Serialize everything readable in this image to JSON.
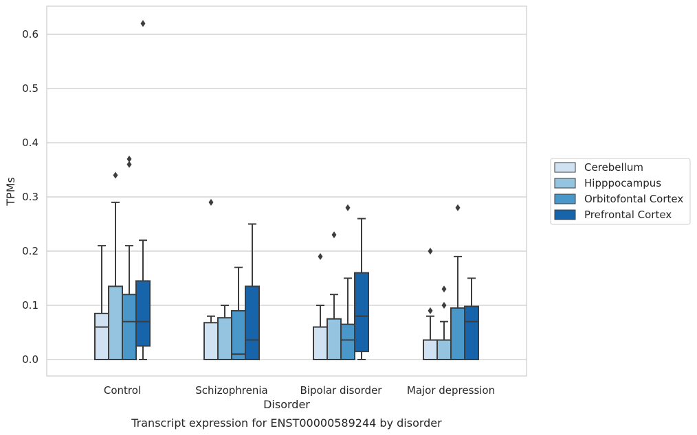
{
  "chart_data": {
    "type": "box",
    "caption": "Transcript expression for ENST00000589244 by disorder",
    "xlabel": "Disorder",
    "ylabel": "TPMs",
    "ylim": [
      -0.03,
      0.65
    ],
    "yticks": [
      0.0,
      0.1,
      0.2,
      0.3,
      0.4,
      0.5,
      0.6
    ],
    "ytick_labels": [
      "0.0",
      "0.1",
      "0.2",
      "0.3",
      "0.4",
      "0.5",
      "0.6"
    ],
    "grid": "horizontal",
    "legend_position": "right",
    "categories": [
      "Control",
      "Schizophrenia",
      "Bipolar disorder",
      "Major depression"
    ],
    "series": [
      {
        "name": "Cerebellum",
        "color": "#d0e1f2",
        "boxes": [
          {
            "whislo": 0.0,
            "q1": 0.0,
            "med": 0.06,
            "q3": 0.085,
            "whishi": 0.21,
            "fliers": []
          },
          {
            "whislo": 0.0,
            "q1": 0.0,
            "med": 0.0,
            "q3": 0.068,
            "whishi": 0.08,
            "fliers": [
              0.29
            ]
          },
          {
            "whislo": 0.0,
            "q1": 0.0,
            "med": 0.0,
            "q3": 0.06,
            "whishi": 0.1,
            "fliers": [
              0.19
            ]
          },
          {
            "whislo": 0.0,
            "q1": 0.0,
            "med": 0.0,
            "q3": 0.036,
            "whishi": 0.08,
            "fliers": [
              0.09,
              0.2
            ]
          }
        ]
      },
      {
        "name": "Hipppocampus",
        "color": "#94c4df",
        "boxes": [
          {
            "whislo": 0.0,
            "q1": 0.0,
            "med": 0.0,
            "q3": 0.135,
            "whishi": 0.29,
            "fliers": [
              0.34
            ]
          },
          {
            "whislo": 0.0,
            "q1": 0.0,
            "med": 0.0,
            "q3": 0.077,
            "whishi": 0.1,
            "fliers": []
          },
          {
            "whislo": 0.0,
            "q1": 0.0,
            "med": 0.0,
            "q3": 0.075,
            "whishi": 0.12,
            "fliers": [
              0.23
            ]
          },
          {
            "whislo": 0.0,
            "q1": 0.0,
            "med": 0.0,
            "q3": 0.036,
            "whishi": 0.07,
            "fliers": [
              0.1,
              0.13
            ]
          }
        ]
      },
      {
        "name": "Orbitofontal Cortex",
        "color": "#4a98c9",
        "boxes": [
          {
            "whislo": 0.0,
            "q1": 0.0,
            "med": 0.07,
            "q3": 0.12,
            "whishi": 0.21,
            "fliers": [
              0.36,
              0.37
            ]
          },
          {
            "whislo": 0.0,
            "q1": 0.0,
            "med": 0.01,
            "q3": 0.09,
            "whishi": 0.17,
            "fliers": []
          },
          {
            "whislo": 0.0,
            "q1": 0.0,
            "med": 0.036,
            "q3": 0.065,
            "whishi": 0.15,
            "fliers": [
              0.28
            ]
          },
          {
            "whislo": 0.0,
            "q1": 0.0,
            "med": 0.0,
            "q3": 0.095,
            "whishi": 0.19,
            "fliers": [
              0.28
            ]
          }
        ]
      },
      {
        "name": "Prefrontal Cortex",
        "color": "#1764ab",
        "boxes": [
          {
            "whislo": 0.0,
            "q1": 0.025,
            "med": 0.07,
            "q3": 0.145,
            "whishi": 0.22,
            "fliers": [
              0.62
            ]
          },
          {
            "whislo": 0.0,
            "q1": 0.0,
            "med": 0.036,
            "q3": 0.135,
            "whishi": 0.25,
            "fliers": []
          },
          {
            "whislo": 0.0,
            "q1": 0.015,
            "med": 0.08,
            "q3": 0.16,
            "whishi": 0.26,
            "fliers": []
          },
          {
            "whislo": 0.0,
            "q1": 0.0,
            "med": 0.07,
            "q3": 0.098,
            "whishi": 0.15,
            "fliers": []
          }
        ]
      }
    ]
  }
}
